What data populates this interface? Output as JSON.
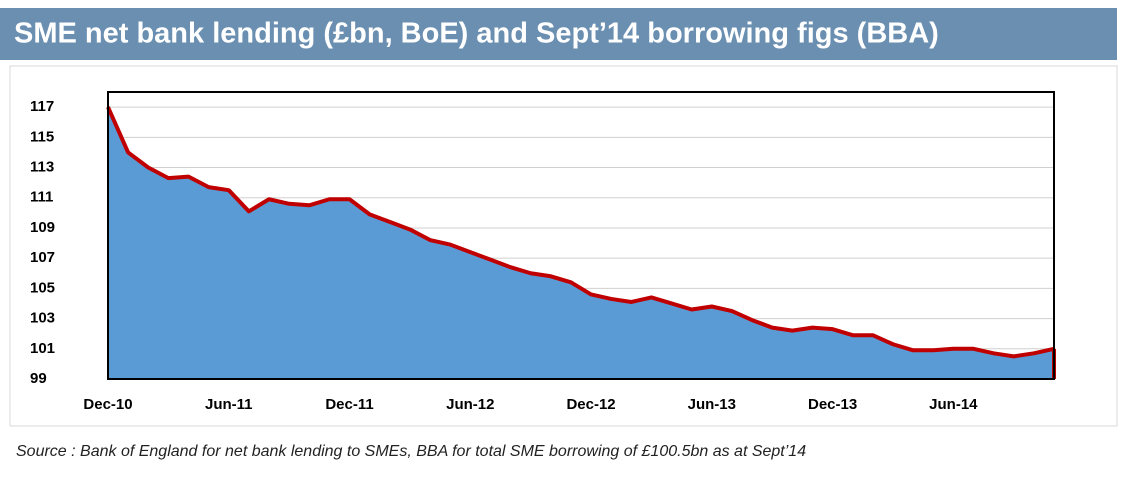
{
  "chart_data": {
    "type": "area",
    "title": "SME net bank lending (£bn, BoE) and Sept’14 borrowing figs (BBA)",
    "source": "Source : Bank of England for net bank lending to SMEs,  BBA for total SME borrowing of £100.5bn as at Sept’14",
    "categories": [
      "Dec-10",
      null,
      null,
      null,
      null,
      null,
      "Jun-11",
      null,
      null,
      null,
      null,
      null,
      "Dec-11",
      null,
      null,
      null,
      null,
      null,
      "Jun-12",
      null,
      null,
      null,
      null,
      null,
      "Dec-12",
      null,
      null,
      null,
      null,
      null,
      "Jun-13",
      null,
      null,
      null,
      null,
      null,
      "Dec-13",
      null,
      null,
      null,
      null,
      null,
      "Jun-14",
      null,
      null,
      null,
      null,
      null
    ],
    "values": [
      117,
      114,
      113,
      112.3,
      112.4,
      111.7,
      111.5,
      110.1,
      110.9,
      110.6,
      110.5,
      110.9,
      110.9,
      109.9,
      109.4,
      108.9,
      108.2,
      107.9,
      107.4,
      106.9,
      106.4,
      106,
      105.8,
      105.4,
      104.6,
      104.3,
      104.1,
      104.4,
      104,
      103.6,
      103.8,
      103.5,
      102.9,
      102.4,
      102.2,
      102.4,
      102.3,
      101.9,
      101.9,
      101.3,
      100.9,
      100.9,
      101,
      101,
      100.7,
      100.5,
      100.7,
      101
    ],
    "color": "#5b9bd5",
    "line_color": "#c00000",
    "ylim": [
      99,
      118
    ],
    "yticks": [
      99,
      101,
      103,
      105,
      107,
      109,
      111,
      113,
      115,
      117
    ],
    "grid": true
  }
}
